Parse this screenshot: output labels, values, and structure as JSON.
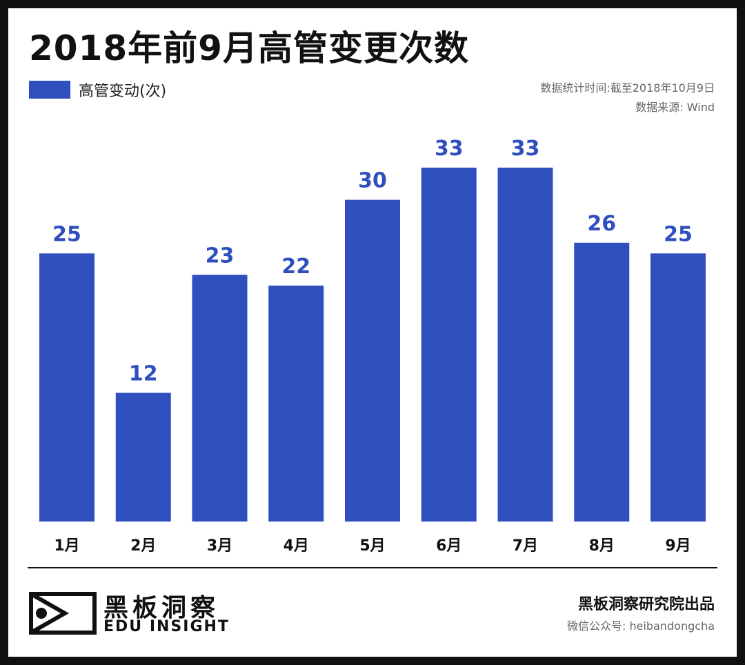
{
  "title": "2018年前9月高管变更次数",
  "legend": {
    "label": "高管变动(次)"
  },
  "meta": {
    "stat_time": "数据统计时间:截至2018年10月9日",
    "source": "数据来源: Wind"
  },
  "footer": {
    "logo_cn": "黑板洞察",
    "logo_en": "EDU INSIGHT",
    "producer": "黑板洞察研究院出品",
    "wechat": "微信公众号: heibandongcha"
  },
  "colors": {
    "bar": "#2F4FBF",
    "label": "#2F4FBF",
    "text": "#111111"
  },
  "chart_data": {
    "type": "bar",
    "title": "2018年前9月高管变更次数",
    "xlabel": "",
    "ylabel": "",
    "categories": [
      "1月",
      "2月",
      "3月",
      "4月",
      "5月",
      "6月",
      "7月",
      "8月",
      "9月"
    ],
    "series": [
      {
        "name": "高管变动(次)",
        "values": [
          25,
          12,
          23,
          22,
          30,
          33,
          33,
          26,
          25
        ]
      }
    ],
    "ylim": [
      0,
      33
    ],
    "grid": false,
    "legend_position": "top-left"
  }
}
